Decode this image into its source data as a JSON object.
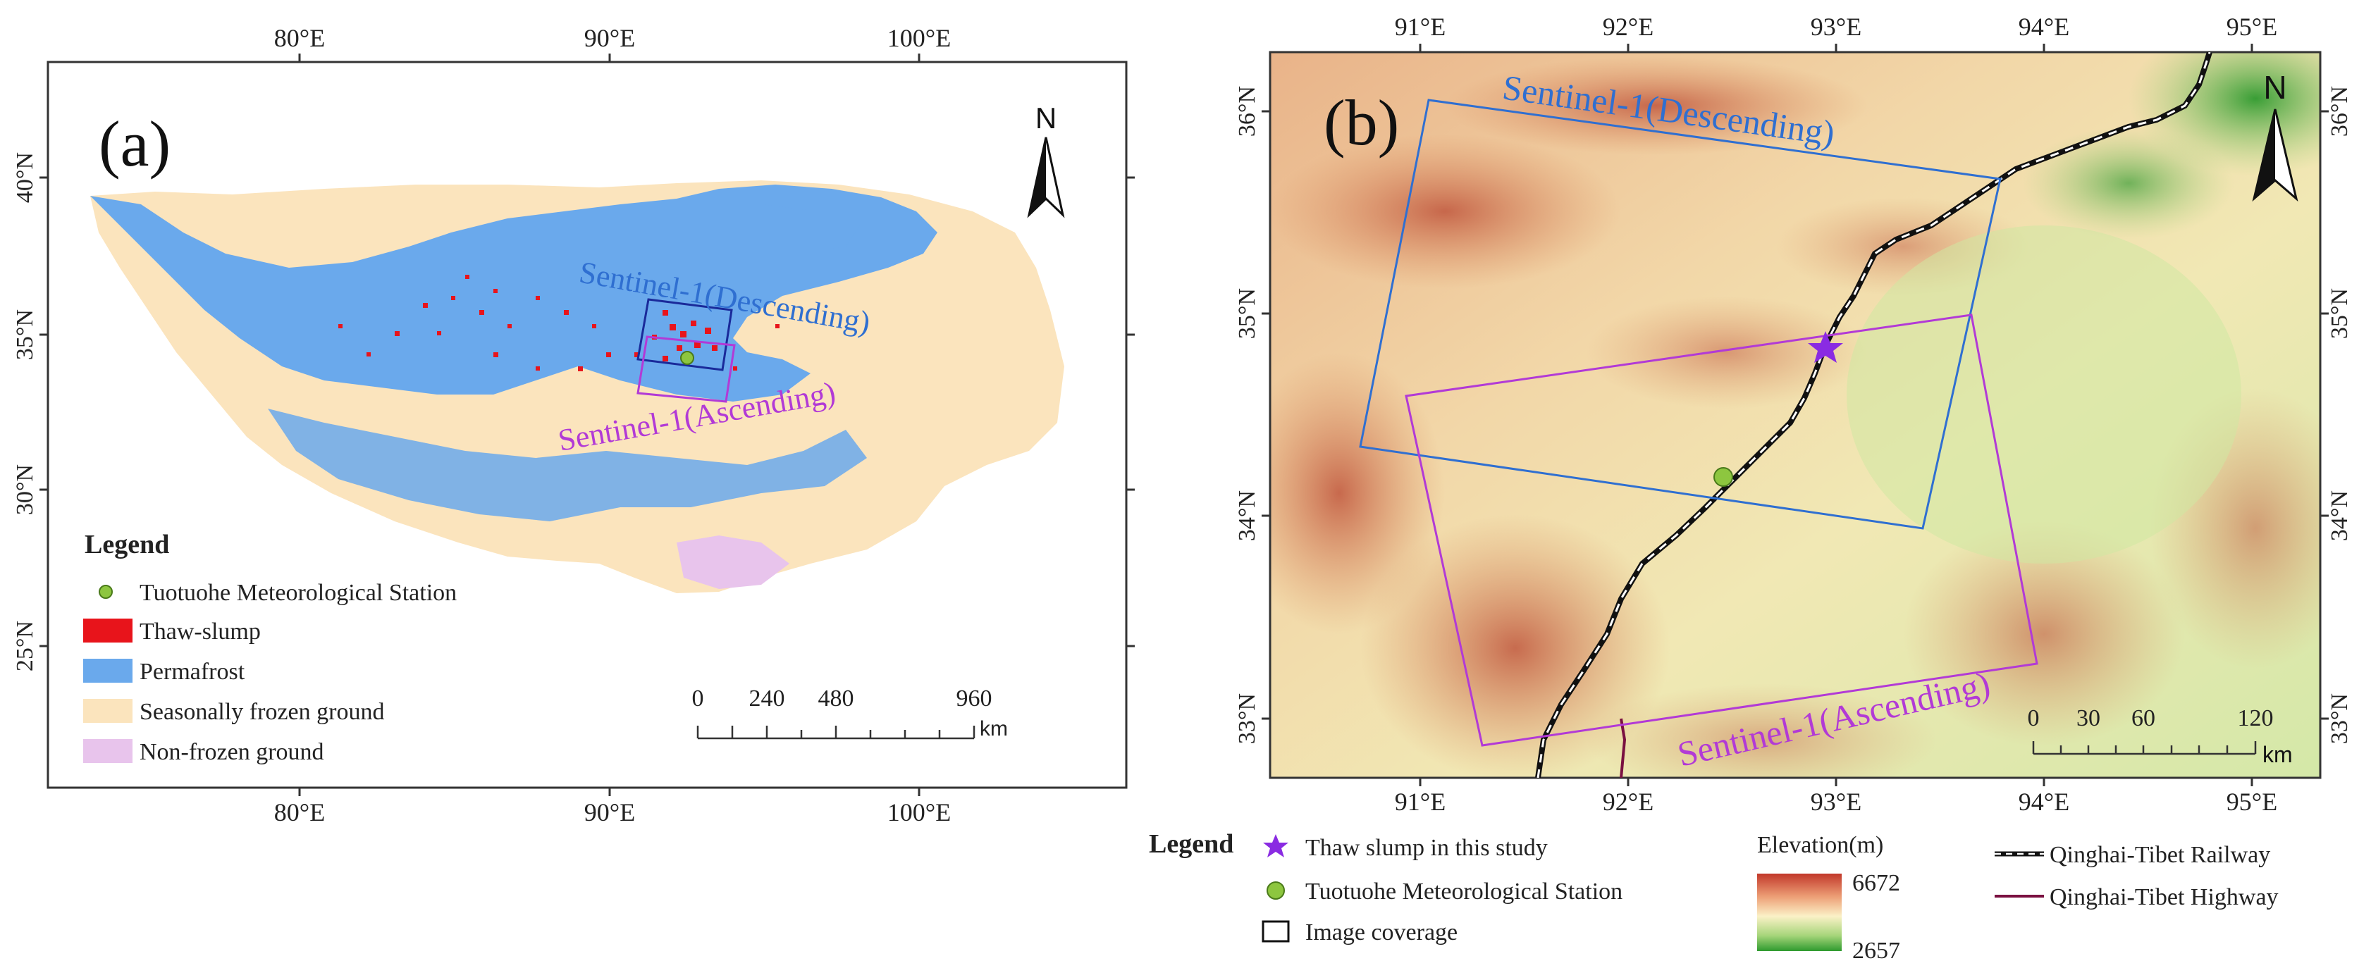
{
  "panel_a": {
    "label": "(a)",
    "lon_ticks": [
      "80°E",
      "90°E",
      "100°E"
    ],
    "lat_ticks": [
      "40°N",
      "35°N",
      "30°N",
      "25°N"
    ],
    "north": "N",
    "descending_label": "Sentinel-1(Descending)",
    "ascending_label": "Sentinel-1(Ascending)",
    "legend": {
      "title": "Legend",
      "items": [
        {
          "label": "Tuotuohe Meteorological Station",
          "color": "#8dc63f"
        },
        {
          "label": "Thaw-slump",
          "color": "#e8141b"
        },
        {
          "label": "Permafrost",
          "color": "#6aa9ec"
        },
        {
          "label": "Seasonally frozen ground",
          "color": "#fbe4bd"
        },
        {
          "label": "Non-frozen ground",
          "color": "#e8c4ec"
        }
      ]
    },
    "scale": {
      "ticks": [
        "0",
        "240",
        "480",
        "960"
      ],
      "unit": "km"
    }
  },
  "panel_b": {
    "label": "(b)",
    "lon_ticks": [
      "91°E",
      "92°E",
      "93°E",
      "94°E",
      "95°E"
    ],
    "lat_ticks": [
      "36°N",
      "35°N",
      "34°N",
      "33°N"
    ],
    "north": "N",
    "descending_label": "Sentinel-1(Descending)",
    "ascending_label": "Sentinel-1(Ascending)",
    "scale": {
      "ticks": [
        "0",
        "30",
        "60",
        "120"
      ],
      "unit": "km"
    }
  },
  "bottom_legend": {
    "title": "Legend",
    "thaw_slump": "Thaw slump in this study",
    "station": "Tuotuohe Meteorological Station",
    "coverage": "Image coverage",
    "elevation_title": "Elevation(m)",
    "elev_max": "6672",
    "elev_min": "2657",
    "railway": "Qinghai-Tibet Railway",
    "highway": "Qinghai-Tibet Highway"
  },
  "colors": {
    "descending": "#2f6fd1",
    "ascending": "#b23ad6",
    "star": "#8a2be2",
    "station": "#8dc63f",
    "highway": "#7a1040"
  }
}
